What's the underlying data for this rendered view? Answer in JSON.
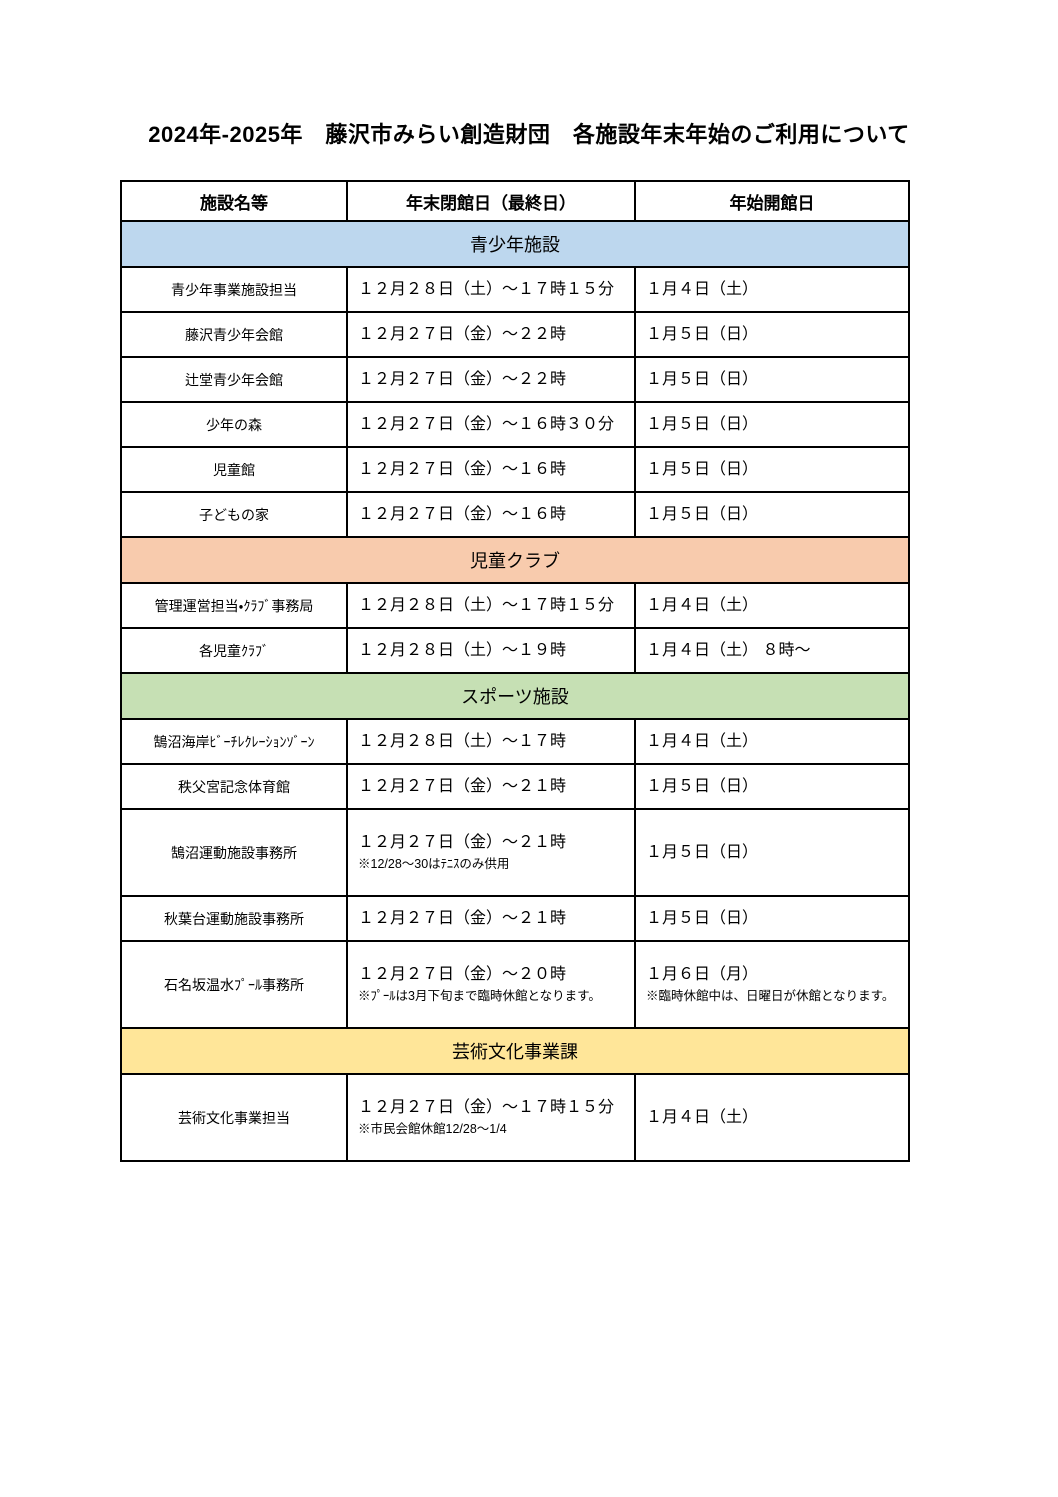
{
  "page": {
    "title": "2024年-2025年　藤沢市みらい創造財団　各施設年末年始のご利用について"
  },
  "table": {
    "headers": [
      "施設名等",
      "年末閉館日（最終日）",
      "年始開館日"
    ],
    "sections": [
      {
        "name": "青少年施設",
        "color": "#BDD7EE",
        "rows": [
          {
            "facility": "青少年事業施設担当",
            "close": "１２月２８日（土）～１７時１５分",
            "open": "１月４日（土）"
          },
          {
            "facility": "藤沢青少年会館",
            "close": "１２月２７日（金）～２２時",
            "open": "１月５日（日）"
          },
          {
            "facility": "辻堂青少年会館",
            "close": "１２月２７日（金）～２２時",
            "open": "１月５日（日）"
          },
          {
            "facility": "少年の森",
            "close": "１２月２７日（金）～１６時３０分",
            "open": "１月５日（日）"
          },
          {
            "facility": "児童館",
            "close": "１２月２７日（金）～１６時",
            "open": "１月５日（日）"
          },
          {
            "facility": "子どもの家",
            "close": "１２月２７日（金）～１６時",
            "open": "１月５日（日）"
          }
        ]
      },
      {
        "name": "児童クラブ",
        "color": "#F8CBAD",
        "rows": [
          {
            "facility": "管理運営担当・ｸﾗﾌﾞ事務局",
            "close": "１２月２８日（土）～１７時１５分",
            "open": "１月４日（土）"
          },
          {
            "facility": "各児童ｸﾗﾌﾞ",
            "close": "１２月２８日（土）～１９時",
            "open": "１月４日（土） ８時～"
          }
        ]
      },
      {
        "name": "スポーツ施設",
        "color": "#C6E0B4",
        "rows": [
          {
            "facility": "鵠沼海岸ﾋﾞｰﾁﾚｸﾚｰｼｮﾝｿﾞｰﾝ",
            "close": "１２月２８日（土）～１７時",
            "open": "１月４日（土）"
          },
          {
            "facility": "秩父宮記念体育館",
            "close": "１２月２７日（金）～２１時",
            "open": "１月５日（日）"
          },
          {
            "facility": "鵠沼運動施設事務所",
            "close": "１２月２７日（金）～２１時",
            "close_note": "※12/28～30はﾃﾆｽのみ供用",
            "open": "１月５日（日）"
          },
          {
            "facility": "秋葉台運動施設事務所",
            "close": "１２月２７日（金）～２１時",
            "open": "１月５日（日）"
          },
          {
            "facility": "石名坂温水ﾌﾟｰﾙ事務所",
            "close": "１２月２７日（金）～２０時",
            "close_note": "※ﾌﾟｰﾙは3月下旬まで臨時休館となります。",
            "open": "１月６日（月）",
            "open_note": "※臨時休館中は、日曜日が休館となります。"
          }
        ]
      },
      {
        "name": "芸術文化事業課",
        "color": "#FFE699",
        "rows": [
          {
            "facility": "芸術文化事業担当",
            "close": "１２月２７日（金）～１７時１５分",
            "close_note": "※市民会館休館12/28～1/4",
            "open": "１月４日（土）"
          }
        ]
      }
    ]
  }
}
